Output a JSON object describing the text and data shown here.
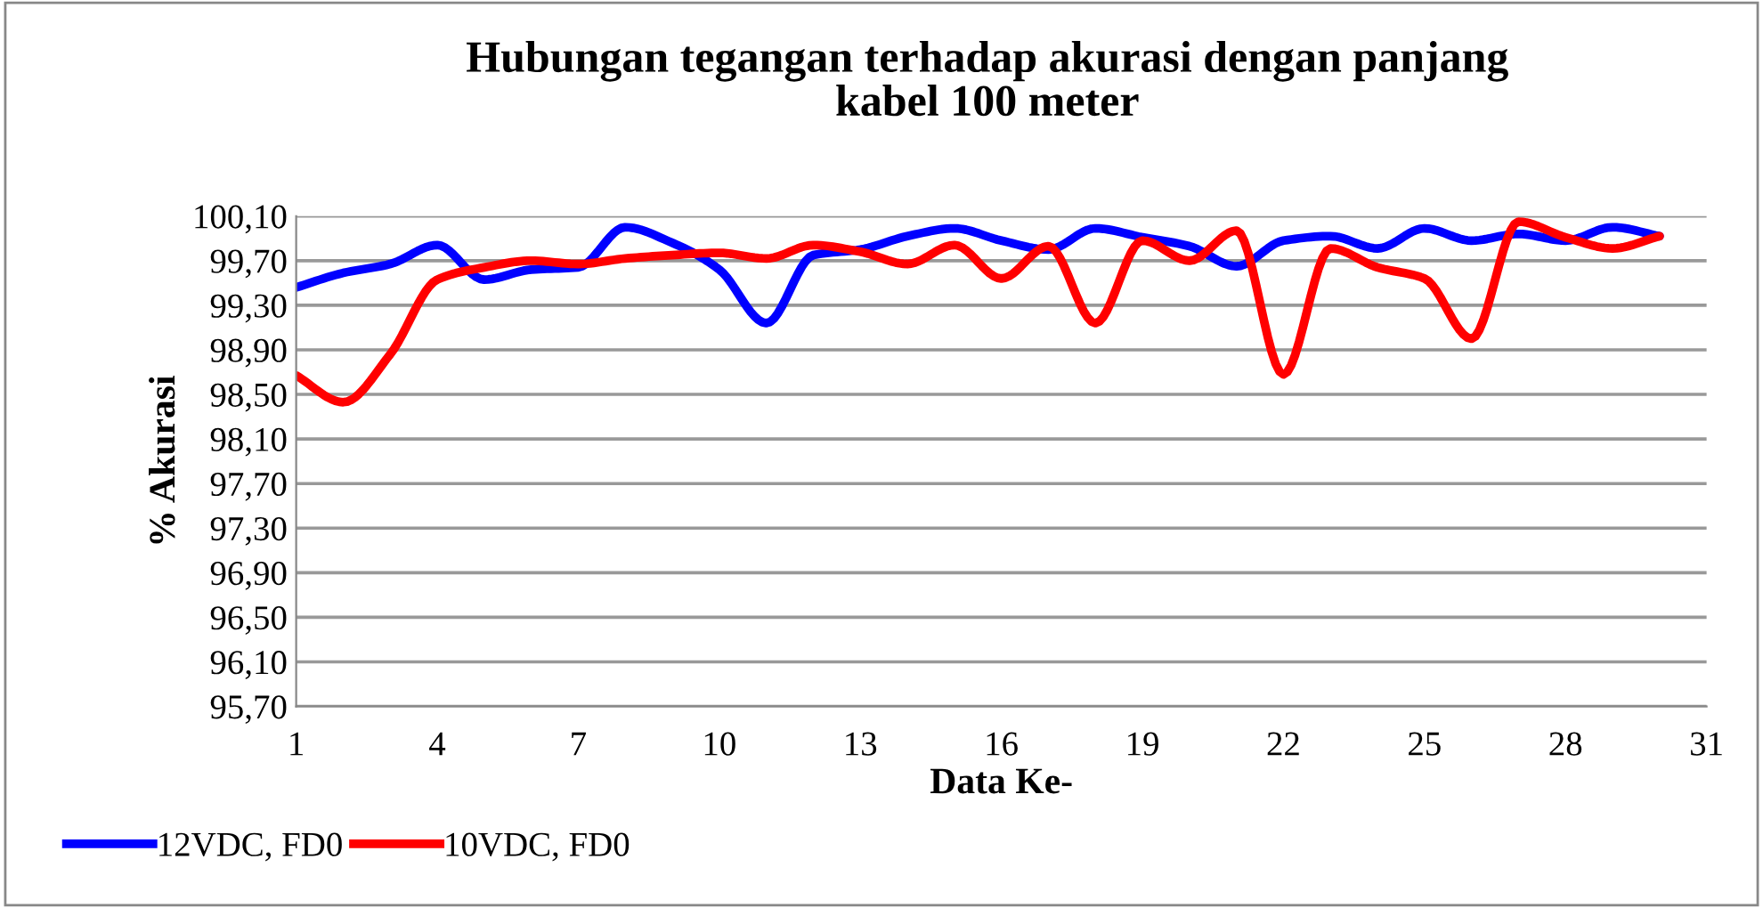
{
  "chart_data": {
    "type": "line",
    "title": "Hubungan tegangan terhadap akurasi dengan panjang\nkabel 100 meter",
    "xlabel": "Data Ke-",
    "ylabel": "% Akurasi",
    "x": [
      1,
      2,
      3,
      4,
      5,
      6,
      7,
      8,
      9,
      10,
      11,
      12,
      13,
      14,
      15,
      16,
      17,
      18,
      19,
      20,
      21,
      22,
      23,
      24,
      25,
      26,
      27,
      28,
      29,
      30
    ],
    "series": [
      {
        "name": "12VDC, FD0",
        "color": "#0000ff",
        "values": [
          99.46,
          99.59,
          99.67,
          99.84,
          99.53,
          99.62,
          99.64,
          100.0,
          99.86,
          99.62,
          99.14,
          99.75,
          99.8,
          99.92,
          99.99,
          99.88,
          99.8,
          99.99,
          99.91,
          99.83,
          99.65,
          99.88,
          99.92,
          99.81,
          99.99,
          99.88,
          99.94,
          99.88,
          100.0,
          99.92
        ]
      },
      {
        "name": "10VDC, FD0",
        "color": "#ff0000",
        "values": [
          98.67,
          98.43,
          98.86,
          99.53,
          99.64,
          99.7,
          99.67,
          99.72,
          99.75,
          99.77,
          99.72,
          99.84,
          99.78,
          99.67,
          99.84,
          99.54,
          99.83,
          99.14,
          99.88,
          99.7,
          99.97,
          98.68,
          99.81,
          99.64,
          99.54,
          99.0,
          100.05,
          99.91,
          99.81,
          99.92
        ]
      }
    ],
    "xlim": [
      1,
      31
    ],
    "xticks": [
      1,
      4,
      7,
      10,
      13,
      16,
      19,
      22,
      25,
      28,
      31
    ],
    "ylim": [
      95.7,
      100.1
    ],
    "yticks": [
      {
        "value": 95.7,
        "label": "95,70"
      },
      {
        "value": 96.1,
        "label": "96,10"
      },
      {
        "value": 96.5,
        "label": "96,50"
      },
      {
        "value": 96.9,
        "label": "96,90"
      },
      {
        "value": 97.3,
        "label": "97,30"
      },
      {
        "value": 97.7,
        "label": "97,70"
      },
      {
        "value": 98.1,
        "label": "98,10"
      },
      {
        "value": 98.5,
        "label": "98,50"
      },
      {
        "value": 98.9,
        "label": "98,90"
      },
      {
        "value": 99.3,
        "label": "99,30"
      },
      {
        "value": 99.7,
        "label": "99,70"
      },
      {
        "value": 100.1,
        "label": "100,10"
      }
    ],
    "grid": "y",
    "legend": "bottom left",
    "marker": "none",
    "line_style": "solid"
  }
}
